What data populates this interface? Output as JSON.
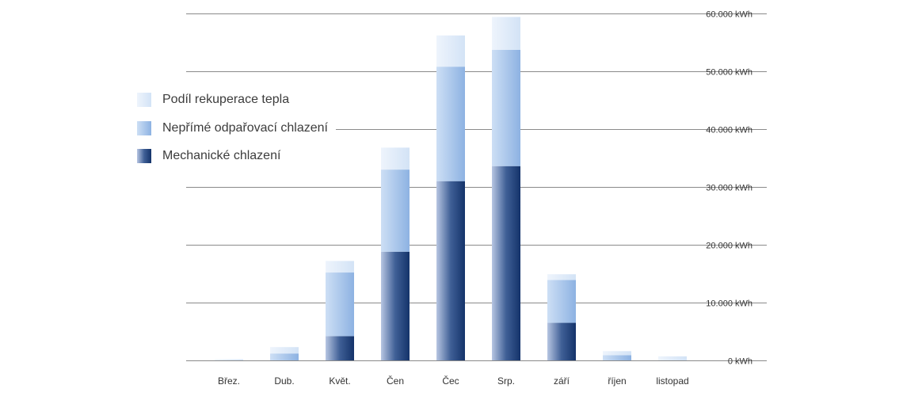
{
  "chart_data": {
    "type": "bar",
    "stacked": true,
    "categories": [
      "Břez.",
      "Dub.",
      "Květ.",
      "Čen",
      "Čec",
      "Srp.",
      "září",
      "říjen",
      "listopad"
    ],
    "series": [
      {
        "name": "Mechanické chlazení",
        "color": "#1a3f78",
        "values": [
          0,
          0,
          4200,
          18800,
          31000,
          33600,
          6500,
          0,
          0
        ]
      },
      {
        "name": "Nepřímé odpařovací chlazení",
        "color": "#8fb4e3",
        "values": [
          0,
          1200,
          11000,
          14200,
          19800,
          20100,
          7400,
          900,
          0
        ]
      },
      {
        "name": "Podíl rekuperace tepla",
        "color": "#d9e7f7",
        "values": [
          200,
          1100,
          2000,
          3800,
          5400,
          5700,
          1000,
          700,
          700
        ]
      }
    ],
    "y_ticks": [
      "0 kWh",
      "10.000 kWh",
      "20.000 kWh",
      "30.000 kWh",
      "40.000 kWh",
      "50.000 kWh",
      "60.000 kWh"
    ],
    "ylim": [
      0,
      60000
    ],
    "grid": true,
    "y_axis_side": "right",
    "legend_position": "left"
  }
}
